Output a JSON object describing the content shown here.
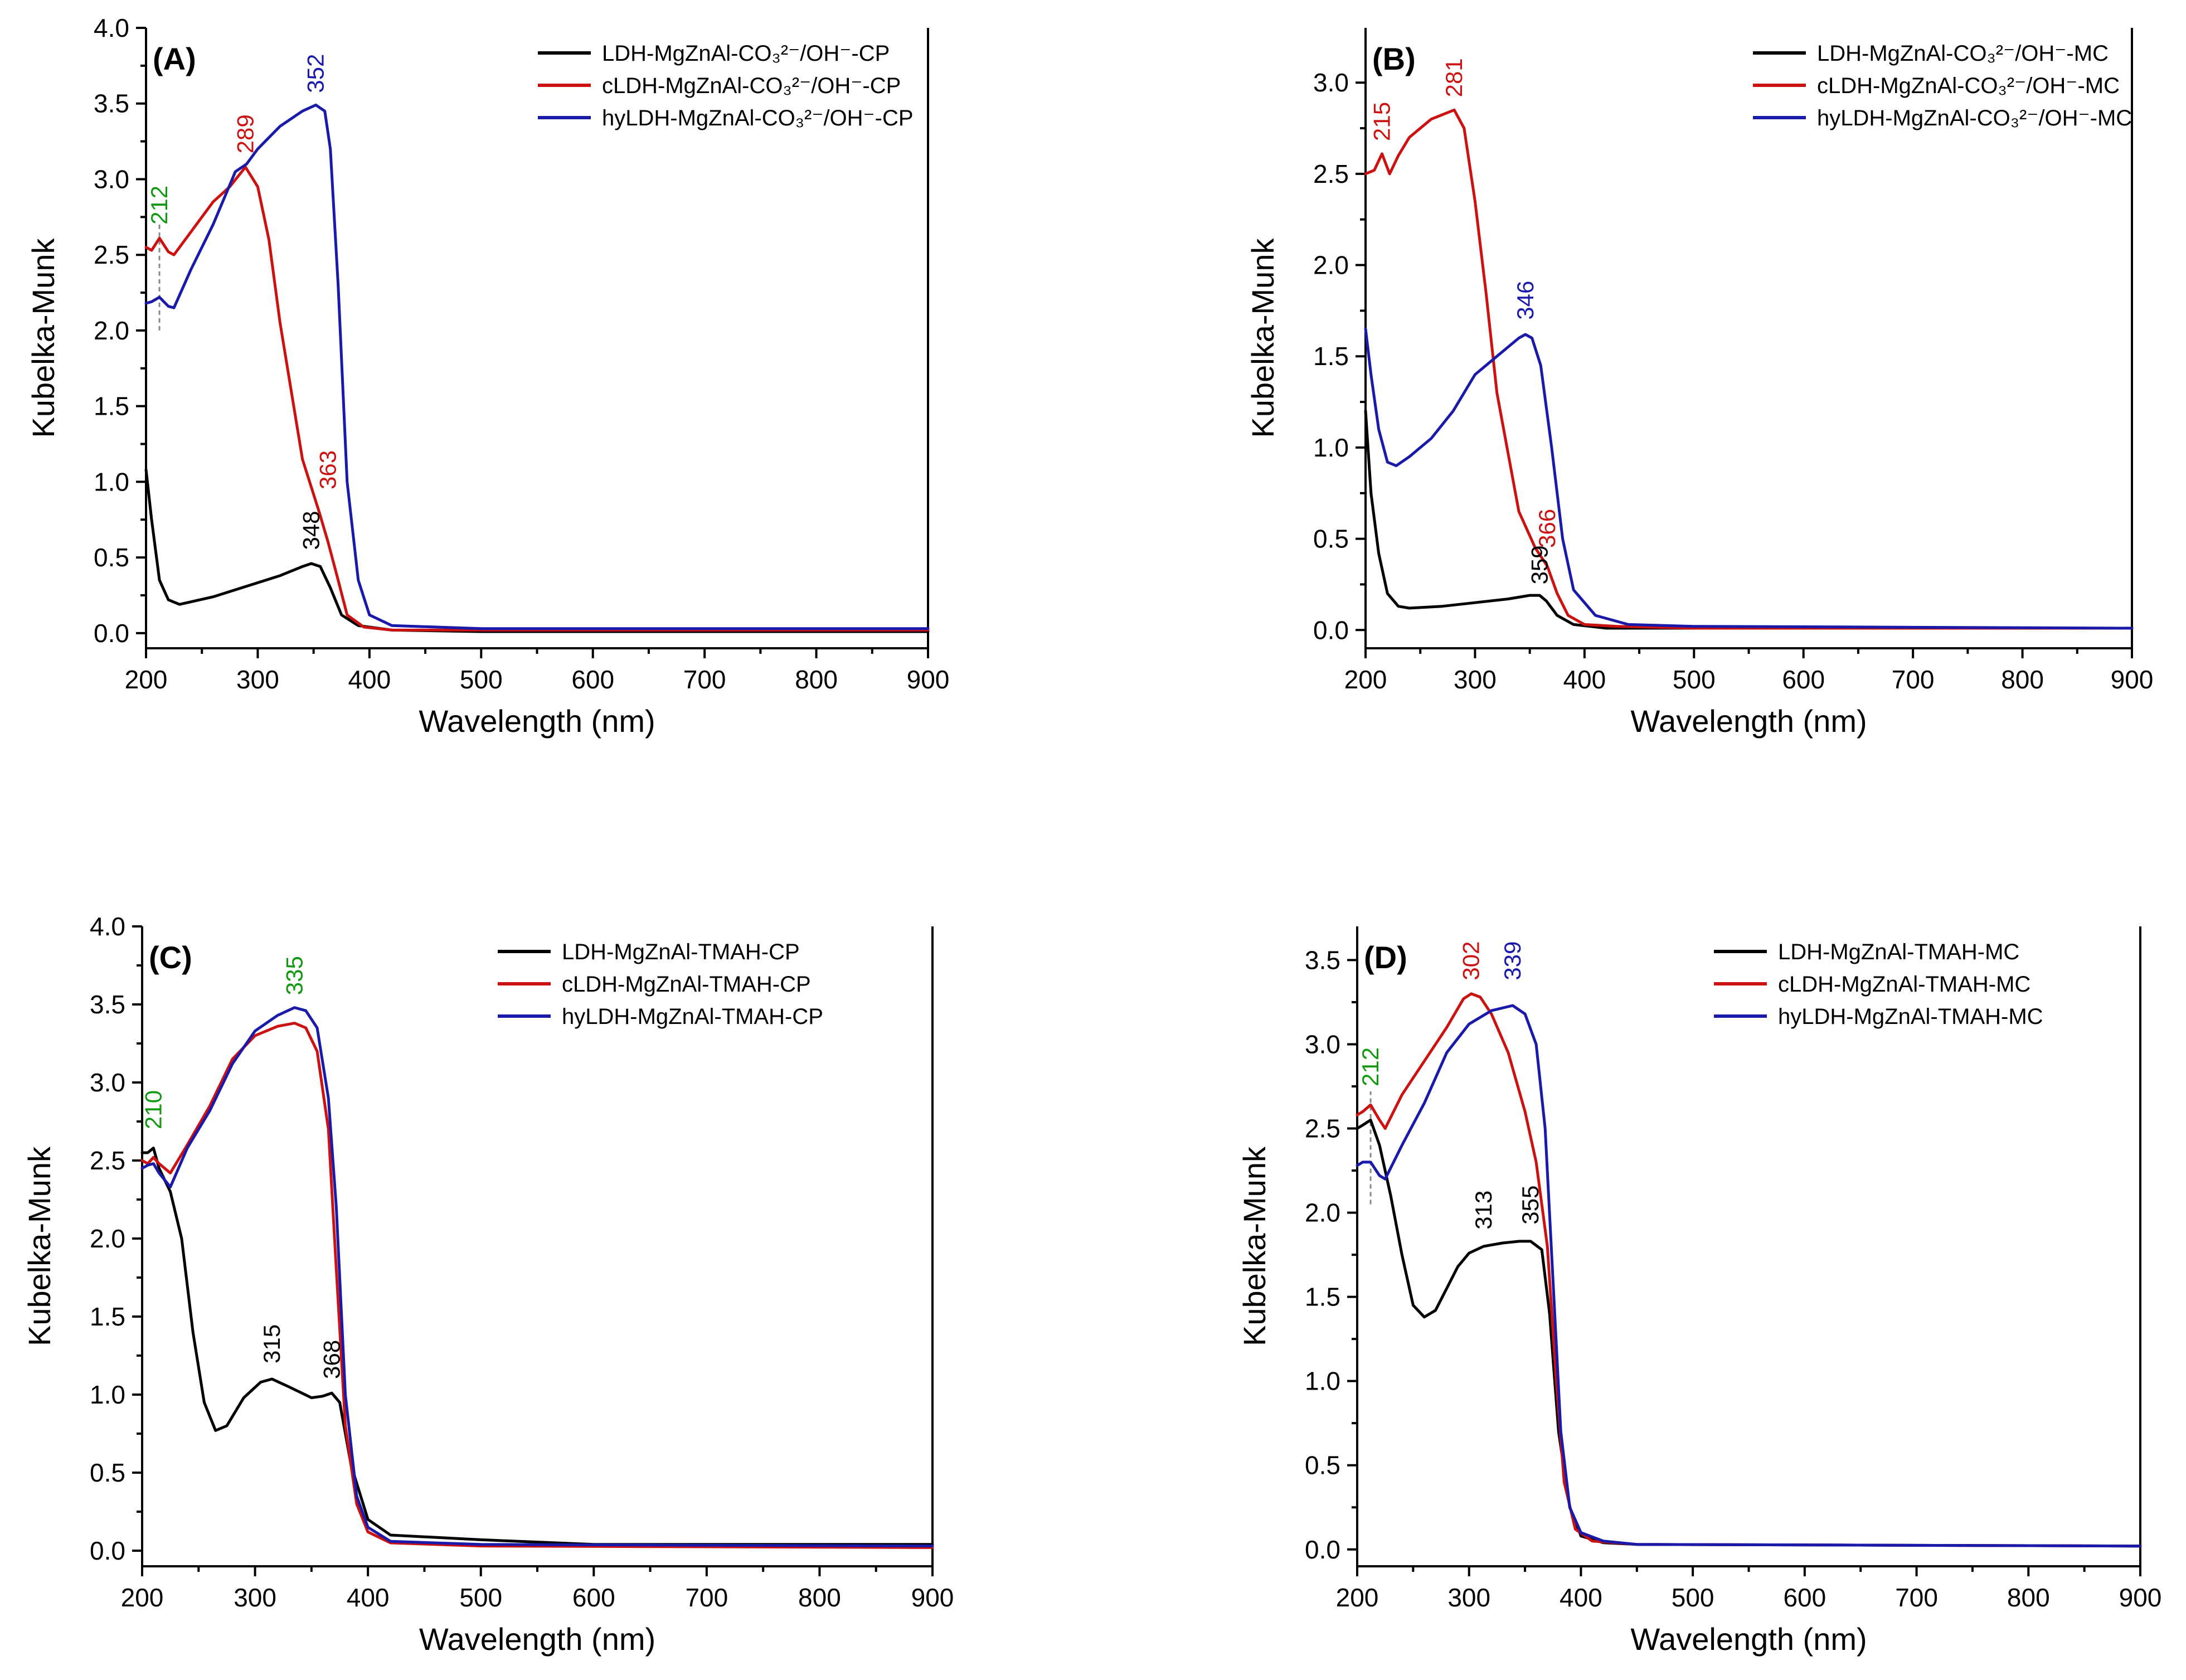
{
  "colors": {
    "black": "#000000",
    "red": "#cc1111",
    "blue": "#1a1aaa",
    "green": "#119911",
    "gray": "#888888"
  },
  "chart_data": [
    {
      "type": "line",
      "panel_label": "(A)",
      "xlabel": "Wavelength (nm)",
      "ylabel": "Kubelka-Munk",
      "xlim": [
        200,
        900
      ],
      "ylim": [
        -0.1,
        4.0
      ],
      "xticks": [
        200,
        300,
        400,
        500,
        600,
        700,
        800,
        900
      ],
      "yticks": [
        0.0,
        0.5,
        1.0,
        1.5,
        2.0,
        2.5,
        3.0,
        3.5,
        4.0
      ],
      "legend": {
        "position": "top-right",
        "entries": [
          "LDH-MgZnAl-CO₃²⁻/OH⁻-CP",
          "cLDH-MgZnAl-CO₃²⁻/OH⁻-CP",
          "hyLDH-MgZnAl-CO₃²⁻/OH⁻-CP"
        ]
      },
      "series": [
        {
          "name": "LDH-MgZnAl-CO₃²⁻/OH⁻-CP",
          "color": "black",
          "x": [
            200,
            205,
            212,
            220,
            230,
            260,
            290,
            320,
            340,
            348,
            356,
            365,
            375,
            390,
            420,
            500,
            900
          ],
          "y": [
            1.08,
            0.75,
            0.35,
            0.22,
            0.19,
            0.24,
            0.31,
            0.38,
            0.44,
            0.46,
            0.44,
            0.3,
            0.12,
            0.05,
            0.02,
            0.01,
            0.01
          ]
        },
        {
          "name": "cLDH-MgZnAl-CO₃²⁻/OH⁻-CP",
          "color": "red",
          "x": [
            200,
            205,
            212,
            220,
            225,
            240,
            260,
            275,
            289,
            300,
            310,
            320,
            340,
            355,
            363,
            372,
            380,
            395,
            420,
            500,
            900
          ],
          "y": [
            2.55,
            2.53,
            2.61,
            2.52,
            2.5,
            2.65,
            2.85,
            2.95,
            3.08,
            2.95,
            2.6,
            2.05,
            1.15,
            0.8,
            0.6,
            0.35,
            0.12,
            0.04,
            0.02,
            0.02,
            0.02
          ]
        },
        {
          "name": "hyLDH-MgZnAl-CO₃²⁻/OH⁻-CP",
          "color": "blue",
          "x": [
            200,
            205,
            212,
            220,
            225,
            240,
            260,
            280,
            290,
            300,
            320,
            340,
            352,
            360,
            365,
            372,
            380,
            390,
            400,
            420,
            500,
            900
          ],
          "y": [
            2.18,
            2.19,
            2.22,
            2.16,
            2.15,
            2.4,
            2.7,
            3.05,
            3.1,
            3.2,
            3.35,
            3.45,
            3.49,
            3.45,
            3.2,
            2.3,
            1.0,
            0.35,
            0.12,
            0.05,
            0.03,
            0.03
          ]
        }
      ],
      "annotations": [
        {
          "text": "212",
          "x": 212,
          "y": 2.7,
          "color": "green"
        },
        {
          "text": "289",
          "x": 289,
          "y": 3.17,
          "color": "red"
        },
        {
          "text": "352",
          "x": 352,
          "y": 3.57,
          "color": "blue"
        },
        {
          "text": "363",
          "x": 363,
          "y": 0.95,
          "color": "red"
        },
        {
          "text": "348",
          "x": 348,
          "y": 0.55,
          "color": "black"
        }
      ],
      "guide_lines": [
        {
          "x": 212,
          "y_from": 2.0,
          "y_to": 2.7
        }
      ]
    },
    {
      "type": "line",
      "panel_label": "(B)",
      "xlabel": "Wavelength (nm)",
      "ylabel": "Kubelka-Munk",
      "xlim": [
        200,
        900
      ],
      "ylim": [
        -0.1,
        3.3
      ],
      "xticks": [
        200,
        300,
        400,
        500,
        600,
        700,
        800,
        900
      ],
      "yticks": [
        0.0,
        0.5,
        1.0,
        1.5,
        2.0,
        2.5,
        3.0
      ],
      "legend": {
        "position": "top-right",
        "entries": [
          "LDH-MgZnAl-CO₃²⁻/OH⁻-MC",
          "cLDH-MgZnAl-CO₃²⁻/OH⁻-MC",
          "hyLDH-MgZnAl-CO₃²⁻/OH⁻-MC"
        ]
      },
      "series": [
        {
          "name": "LDH-MgZnAl-CO₃²⁻/OH⁻-MC",
          "color": "black",
          "x": [
            200,
            205,
            212,
            220,
            230,
            240,
            270,
            300,
            330,
            350,
            359,
            365,
            375,
            390,
            420,
            500,
            900
          ],
          "y": [
            1.2,
            0.75,
            0.42,
            0.2,
            0.13,
            0.12,
            0.13,
            0.15,
            0.17,
            0.19,
            0.19,
            0.16,
            0.08,
            0.03,
            0.01,
            0.01,
            0.01
          ]
        },
        {
          "name": "cLDH-MgZnAl-CO₃²⁻/OH⁻-MC",
          "color": "red",
          "x": [
            200,
            208,
            215,
            222,
            230,
            240,
            260,
            281,
            290,
            300,
            310,
            320,
            340,
            355,
            366,
            375,
            385,
            400,
            430,
            500,
            900
          ],
          "y": [
            2.5,
            2.52,
            2.61,
            2.5,
            2.6,
            2.7,
            2.8,
            2.85,
            2.75,
            2.35,
            1.85,
            1.3,
            0.65,
            0.45,
            0.35,
            0.2,
            0.08,
            0.03,
            0.02,
            0.01,
            0.01
          ]
        },
        {
          "name": "hyLDH-MgZnAl-CO₃²⁻/OH⁻-MC",
          "color": "blue",
          "x": [
            200,
            205,
            212,
            220,
            228,
            240,
            260,
            280,
            300,
            320,
            340,
            346,
            352,
            360,
            370,
            380,
            390,
            410,
            440,
            500,
            900
          ],
          "y": [
            1.65,
            1.4,
            1.1,
            0.92,
            0.9,
            0.95,
            1.05,
            1.2,
            1.4,
            1.5,
            1.6,
            1.62,
            1.6,
            1.45,
            1.0,
            0.5,
            0.22,
            0.08,
            0.03,
            0.02,
            0.01
          ]
        }
      ],
      "annotations": [
        {
          "text": "215",
          "x": 215,
          "y": 2.68,
          "color": "red"
        },
        {
          "text": "281",
          "x": 281,
          "y": 2.92,
          "color": "red"
        },
        {
          "text": "346",
          "x": 346,
          "y": 1.7,
          "color": "blue"
        },
        {
          "text": "366",
          "x": 366,
          "y": 0.45,
          "color": "red"
        },
        {
          "text": "359",
          "x": 359,
          "y": 0.25,
          "color": "black"
        }
      ],
      "guide_lines": []
    },
    {
      "type": "line",
      "panel_label": "(C)",
      "xlabel": "Wavelength (nm)",
      "ylabel": "Kubelka-Munk",
      "xlim": [
        200,
        900
      ],
      "ylim": [
        -0.1,
        4.0
      ],
      "xticks": [
        200,
        300,
        400,
        500,
        600,
        700,
        800,
        900
      ],
      "yticks": [
        0.0,
        0.5,
        1.0,
        1.5,
        2.0,
        2.5,
        3.0,
        3.5,
        4.0
      ],
      "legend": {
        "position": "top-right",
        "entries": [
          "LDH-MgZnAl-TMAH-CP",
          "cLDH-MgZnAl-TMAH-CP",
          "hyLDH-MgZnAl-TMAH-CP"
        ]
      },
      "series": [
        {
          "name": "LDH-MgZnAl-TMAH-CP",
          "color": "black",
          "x": [
            200,
            205,
            210,
            215,
            225,
            235,
            245,
            255,
            265,
            275,
            290,
            305,
            315,
            330,
            350,
            360,
            368,
            375,
            385,
            400,
            420,
            500,
            600,
            900
          ],
          "y": [
            2.55,
            2.55,
            2.58,
            2.45,
            2.3,
            2.0,
            1.4,
            0.95,
            0.77,
            0.8,
            0.98,
            1.08,
            1.1,
            1.05,
            0.98,
            0.99,
            1.01,
            0.95,
            0.55,
            0.2,
            0.1,
            0.07,
            0.04,
            0.04
          ]
        },
        {
          "name": "cLDH-MgZnAl-TMAH-CP",
          "color": "red",
          "x": [
            200,
            205,
            210,
            215,
            225,
            240,
            260,
            280,
            300,
            320,
            335,
            345,
            355,
            365,
            372,
            380,
            390,
            400,
            420,
            500,
            900
          ],
          "y": [
            2.5,
            2.48,
            2.52,
            2.48,
            2.42,
            2.6,
            2.85,
            3.15,
            3.3,
            3.36,
            3.38,
            3.35,
            3.2,
            2.7,
            1.8,
            0.8,
            0.3,
            0.12,
            0.05,
            0.03,
            0.02
          ]
        },
        {
          "name": "hyLDH-MgZnAl-TMAH-CP",
          "color": "blue",
          "x": [
            200,
            205,
            210,
            215,
            225,
            240,
            260,
            280,
            300,
            320,
            335,
            345,
            355,
            365,
            372,
            380,
            390,
            400,
            420,
            500,
            900
          ],
          "y": [
            2.45,
            2.47,
            2.48,
            2.42,
            2.33,
            2.58,
            2.82,
            3.12,
            3.33,
            3.43,
            3.48,
            3.46,
            3.35,
            2.9,
            2.2,
            1.0,
            0.35,
            0.15,
            0.06,
            0.04,
            0.03
          ]
        }
      ],
      "annotations": [
        {
          "text": "210",
          "x": 210,
          "y": 2.7,
          "color": "green"
        },
        {
          "text": "335",
          "x": 335,
          "y": 3.56,
          "color": "green"
        },
        {
          "text": "315",
          "x": 315,
          "y": 1.2,
          "color": "black"
        },
        {
          "text": "368",
          "x": 368,
          "y": 1.1,
          "color": "black"
        }
      ],
      "guide_lines": []
    },
    {
      "type": "line",
      "panel_label": "(D)",
      "xlabel": "Wavelength (nm)",
      "ylabel": "Kubelka-Munk",
      "xlim": [
        200,
        900
      ],
      "ylim": [
        -0.1,
        3.7
      ],
      "xticks": [
        200,
        300,
        400,
        500,
        600,
        700,
        800,
        900
      ],
      "yticks": [
        0.0,
        0.5,
        1.0,
        1.5,
        2.0,
        2.5,
        3.0,
        3.5
      ],
      "legend": {
        "position": "top-right",
        "entries": [
          "LDH-MgZnAl-TMAH-MC",
          "cLDH-MgZnAl-TMAH-MC",
          "hyLDH-MgZnAl-TMAH-MC"
        ]
      },
      "series": [
        {
          "name": "LDH-MgZnAl-TMAH-MC",
          "color": "black",
          "x": [
            200,
            205,
            212,
            220,
            230,
            240,
            250,
            260,
            270,
            280,
            290,
            300,
            313,
            330,
            345,
            355,
            365,
            372,
            380,
            390,
            400,
            420,
            450,
            900
          ],
          "y": [
            2.5,
            2.52,
            2.55,
            2.4,
            2.1,
            1.75,
            1.45,
            1.38,
            1.42,
            1.55,
            1.68,
            1.76,
            1.8,
            1.82,
            1.83,
            1.83,
            1.78,
            1.4,
            0.7,
            0.25,
            0.08,
            0.04,
            0.03,
            0.02
          ]
        },
        {
          "name": "cLDH-MgZnAl-TMAH-MC",
          "color": "red",
          "x": [
            200,
            205,
            212,
            220,
            225,
            240,
            260,
            280,
            295,
            302,
            310,
            320,
            335,
            350,
            360,
            370,
            378,
            385,
            395,
            410,
            450,
            900
          ],
          "y": [
            2.58,
            2.6,
            2.64,
            2.55,
            2.5,
            2.7,
            2.9,
            3.1,
            3.27,
            3.3,
            3.28,
            3.18,
            2.95,
            2.6,
            2.3,
            1.8,
            1.0,
            0.4,
            0.12,
            0.05,
            0.03,
            0.02
          ]
        },
        {
          "name": "hyLDH-MgZnAl-TMAH-MC",
          "color": "blue",
          "x": [
            200,
            205,
            212,
            220,
            225,
            240,
            260,
            280,
            300,
            320,
            339,
            350,
            360,
            368,
            375,
            382,
            390,
            400,
            420,
            450,
            900
          ],
          "y": [
            2.28,
            2.3,
            2.3,
            2.22,
            2.2,
            2.4,
            2.65,
            2.95,
            3.12,
            3.2,
            3.23,
            3.18,
            3.0,
            2.5,
            1.6,
            0.7,
            0.25,
            0.1,
            0.05,
            0.03,
            0.02
          ]
        }
      ],
      "annotations": [
        {
          "text": "212",
          "x": 212,
          "y": 2.75,
          "color": "green"
        },
        {
          "text": "302",
          "x": 302,
          "y": 3.38,
          "color": "red"
        },
        {
          "text": "339",
          "x": 339,
          "y": 3.38,
          "color": "blue"
        },
        {
          "text": "313",
          "x": 313,
          "y": 1.9,
          "color": "black"
        },
        {
          "text": "355",
          "x": 355,
          "y": 1.93,
          "color": "black"
        }
      ],
      "guide_lines": [
        {
          "x": 212,
          "y_from": 2.05,
          "y_to": 2.72
        }
      ]
    }
  ]
}
